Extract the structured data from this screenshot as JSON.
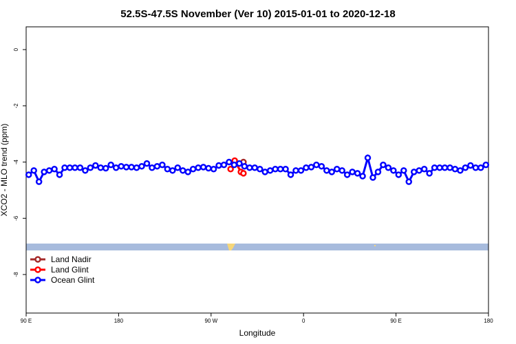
{
  "chart_data": {
    "type": "line",
    "title": "52.5S-47.5S November (Ver 10)   2015-01-01 to 2020-12-18",
    "x_label": "Longitude",
    "y_label": "XCO2 - MLO trend (ppm)",
    "xlim": [
      90,
      540
    ],
    "xticks": [
      {
        "value": 90,
        "label": "90 E"
      },
      180,
      {
        "value": 270,
        "label": "90 W"
      },
      {
        "value": 360,
        "label": "0"
      },
      {
        "value": 450,
        "label": "90 E"
      },
      {
        "value": 540,
        "label": "180"
      }
    ],
    "ylim": [
      -9.37,
      0.81
    ],
    "yticks": [
      0,
      -2,
      -4,
      -6,
      -8
    ],
    "legend": "bottom-left",
    "series": [
      {
        "name": "Land Nadir",
        "color": "#a52a2a",
        "x": [
          293,
          301.5
        ],
        "values": [
          -4.05,
          -4.0
        ]
      },
      {
        "name": "Land Glint",
        "color": "#ff0000",
        "x": [
          289,
          293,
          299,
          301.5
        ],
        "values": [
          -4.25,
          -3.95,
          -4.35,
          -4.4
        ]
      },
      {
        "name": "Ocean Glint",
        "color": "#0000ff",
        "x": [
          92.5,
          97.5,
          102.5,
          107.5,
          112.5,
          117.5,
          122.5,
          127.5,
          132.5,
          137.5,
          142.5,
          147.5,
          152.5,
          157.5,
          162.5,
          167.5,
          172.5,
          177.5,
          182.5,
          187.5,
          192.5,
          197.5,
          202.5,
          207.5,
          212.5,
          217.5,
          222.5,
          227.5,
          232.5,
          237.5,
          242.5,
          247.5,
          252.5,
          257.5,
          262.5,
          267.5,
          272.5,
          277.5,
          282.5,
          287.5,
          292.5,
          297.5,
          302.5,
          307.5,
          312.5,
          317.5,
          322.5,
          327.5,
          332.5,
          337.5,
          342.5,
          347.5,
          352.5,
          357.5,
          362.5,
          367.5,
          372.5,
          377.5,
          382.5,
          387.5,
          392.5,
          397.5,
          402.5,
          407.5,
          412.5,
          417.5,
          422.5,
          427.5,
          432.5,
          437.5,
          442.5,
          447.5,
          452.5,
          457.5,
          462.5,
          467.5,
          472.5,
          477.5,
          482.5,
          487.5,
          492.5,
          497.5,
          502.5,
          507.5,
          512.5,
          517.5,
          522.5,
          527.5,
          532.5,
          537.5
        ],
        "values": [
          -4.45,
          -4.3,
          -4.7,
          -4.35,
          -4.3,
          -4.25,
          -4.45,
          -4.2,
          -4.2,
          -4.2,
          -4.2,
          -4.3,
          -4.2,
          -4.12,
          -4.2,
          -4.22,
          -4.1,
          -4.2,
          -4.15,
          -4.18,
          -4.18,
          -4.2,
          -4.15,
          -4.05,
          -4.2,
          -4.15,
          -4.1,
          -4.25,
          -4.3,
          -4.2,
          -4.3,
          -4.35,
          -4.25,
          -4.2,
          -4.18,
          -4.22,
          -4.25,
          -4.12,
          -4.1,
          -4.0,
          -4.1,
          -4.05,
          -4.15,
          -4.2,
          -4.2,
          -4.25,
          -4.35,
          -4.3,
          -4.25,
          -4.25,
          -4.25,
          -4.45,
          -4.3,
          -4.3,
          -4.2,
          -4.18,
          -4.1,
          -4.15,
          -4.3,
          -4.35,
          -4.25,
          -4.3,
          -4.45,
          -4.35,
          -4.4,
          -4.5,
          -3.85,
          -4.55,
          -4.35,
          -4.1,
          -4.2,
          -4.3,
          -4.45,
          -4.3,
          -4.7,
          -4.35,
          -4.3,
          -4.25,
          -4.4,
          -4.2,
          -4.2,
          -4.2,
          -4.2,
          -4.25,
          -4.3,
          -4.2,
          -4.12,
          -4.2,
          -4.2,
          -4.1
        ]
      }
    ]
  }
}
